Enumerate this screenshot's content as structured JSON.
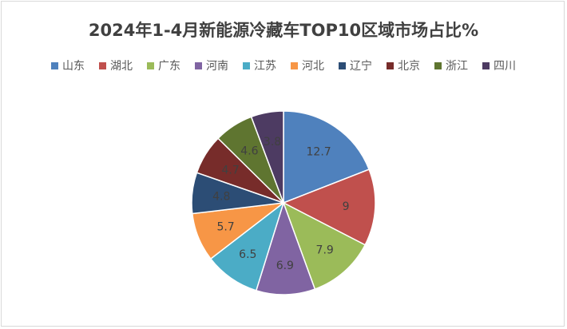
{
  "chart_data": {
    "type": "pie",
    "title": "2024年1-4月新能源冷藏车TOP10区域市场占比%",
    "categories": [
      "山东",
      "湖北",
      "广东",
      "河南",
      "江苏",
      "河北",
      "辽宁",
      "北京",
      "浙江",
      "四川"
    ],
    "values": [
      12.7,
      9,
      7.9,
      6.9,
      6.5,
      5.7,
      4.8,
      4.7,
      4.6,
      3.8
    ],
    "colors": [
      "#4f81bd",
      "#c0504d",
      "#9bbb59",
      "#8064a2",
      "#4bacc6",
      "#f79646",
      "#2c4d75",
      "#772c2a",
      "#5f7530",
      "#4d3b62"
    ],
    "legend_position": "top"
  }
}
